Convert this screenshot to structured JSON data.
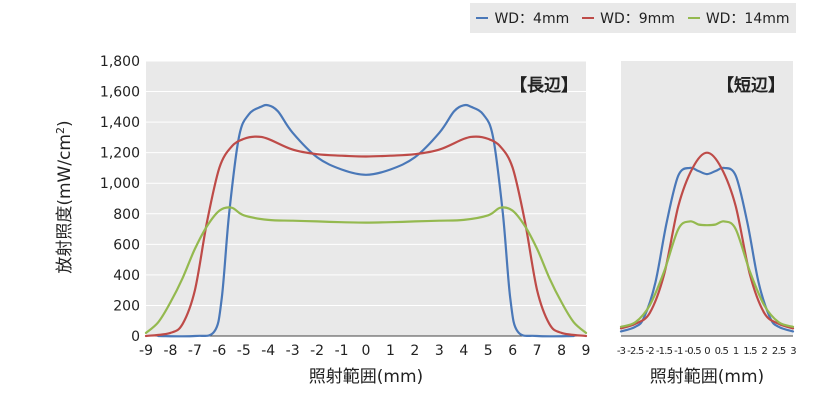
{
  "legend": [
    {
      "label": "WD：4mm",
      "color": "#4a78b8"
    },
    {
      "label": "WD：9mm",
      "color": "#be4b48"
    },
    {
      "label": "WD：14mm",
      "color": "#94b94f"
    }
  ],
  "ylabel_main": "放射照度(mW/cm",
  "ylabel_sup": "2",
  "ylabel_close": ")",
  "chart_data": [
    {
      "type": "line",
      "title": "【長辺】",
      "xlabel": "照射範囲(mm)",
      "ylabel": "放射照度(mW/cm2)",
      "xlim": [
        -9,
        9
      ],
      "ylim": [
        0,
        1800
      ],
      "xticks": [
        -9,
        -8,
        -7,
        -6,
        -5,
        -4,
        -3,
        -2,
        -1,
        0,
        1,
        2,
        3,
        4,
        5,
        6,
        7,
        8,
        9
      ],
      "yticks": [
        0,
        200,
        400,
        600,
        800,
        1000,
        1200,
        1400,
        1600,
        1800
      ],
      "ytick_labels": [
        "0",
        "200",
        "400",
        "600",
        "800",
        "1,000",
        "1,200",
        "1,400",
        "1,600",
        "1,800"
      ],
      "grid": true,
      "series": [
        {
          "name": "WD：4mm",
          "color": "#4a78b8",
          "x": [
            -8.5,
            -7,
            -6.2,
            -5.9,
            -5.6,
            -5.2,
            -4.8,
            -4.3,
            -4,
            -3.6,
            -3,
            -2,
            -1,
            0,
            1,
            2,
            3,
            3.6,
            4,
            4.3,
            4.8,
            5.2,
            5.6,
            5.9,
            6.2,
            7,
            8.5
          ],
          "y": [
            0,
            0,
            30,
            250,
            800,
            1300,
            1450,
            1500,
            1510,
            1470,
            1330,
            1170,
            1090,
            1055,
            1090,
            1170,
            1330,
            1470,
            1510,
            1500,
            1450,
            1300,
            800,
            250,
            30,
            0,
            0
          ]
        },
        {
          "name": "WD：9mm",
          "color": "#be4b48",
          "x": [
            -9,
            -8,
            -7.5,
            -7,
            -6.5,
            -6,
            -5.5,
            -5,
            -4.5,
            -4,
            -3,
            -2,
            -1,
            0,
            1,
            2,
            3,
            4,
            4.5,
            5,
            5.5,
            6,
            6.5,
            7,
            7.5,
            8,
            9
          ],
          "y": [
            0,
            20,
            80,
            300,
            750,
            1100,
            1240,
            1290,
            1305,
            1290,
            1220,
            1190,
            1180,
            1175,
            1180,
            1190,
            1220,
            1290,
            1305,
            1290,
            1240,
            1100,
            750,
            300,
            80,
            20,
            0
          ]
        },
        {
          "name": "WD：14mm",
          "color": "#94b94f",
          "x": [
            -9,
            -8.5,
            -8,
            -7.5,
            -7,
            -6.5,
            -6,
            -5.5,
            -5,
            -4,
            -3,
            -2,
            -1,
            0,
            1,
            2,
            3,
            4,
            5,
            5.5,
            6,
            6.5,
            7,
            7.5,
            8,
            8.5,
            9
          ],
          "y": [
            20,
            90,
            220,
            380,
            570,
            720,
            820,
            840,
            790,
            760,
            755,
            750,
            745,
            742,
            745,
            750,
            755,
            760,
            790,
            840,
            820,
            720,
            570,
            380,
            220,
            90,
            20
          ]
        }
      ]
    },
    {
      "type": "line",
      "title": "【短辺】",
      "xlabel": "照射範囲(mm)",
      "xlim": [
        -3,
        3
      ],
      "ylim": [
        0,
        1800
      ],
      "xticks": [
        -3,
        -2.5,
        -2,
        -1.5,
        -1,
        -0.5,
        0,
        0.5,
        1,
        1.5,
        2,
        2.5,
        3
      ],
      "xtick_labels": [
        "-3",
        "-2.5",
        "-2",
        "-1.5",
        "-1",
        "-0.5",
        "0",
        "0.5",
        "1",
        "1.5",
        "2",
        "2.5",
        "3"
      ],
      "grid": false,
      "series": [
        {
          "name": "WD：4mm",
          "color": "#4a78b8",
          "x": [
            -3,
            -2.5,
            -2.2,
            -1.8,
            -1.4,
            -1,
            -0.6,
            -0.3,
            0,
            0.3,
            0.6,
            1,
            1.4,
            1.8,
            2.2,
            2.5,
            3
          ],
          "y": [
            30,
            60,
            120,
            350,
            750,
            1050,
            1100,
            1080,
            1060,
            1080,
            1100,
            1050,
            750,
            350,
            120,
            60,
            30
          ]
        },
        {
          "name": "WD：9mm",
          "color": "#be4b48",
          "x": [
            -3,
            -2.5,
            -2,
            -1.5,
            -1,
            -0.5,
            0,
            0.5,
            1,
            1.5,
            2,
            2.5,
            3
          ],
          "y": [
            50,
            80,
            150,
            400,
            850,
            1100,
            1200,
            1100,
            850,
            400,
            150,
            80,
            50
          ]
        },
        {
          "name": "WD：14mm",
          "color": "#94b94f",
          "x": [
            -3,
            -2.5,
            -2,
            -1.5,
            -1,
            -0.6,
            -0.3,
            0,
            0.3,
            0.6,
            1,
            1.5,
            2,
            2.5,
            3
          ],
          "y": [
            60,
            90,
            200,
            420,
            700,
            750,
            730,
            725,
            730,
            750,
            700,
            420,
            200,
            90,
            60
          ]
        }
      ]
    }
  ]
}
